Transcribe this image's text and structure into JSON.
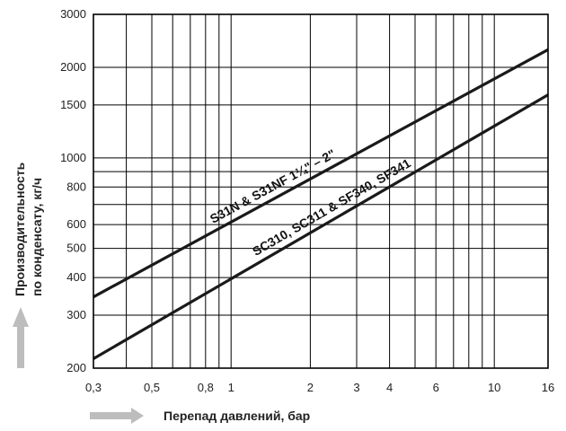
{
  "chart_data": {
    "type": "line",
    "x_scale": "log",
    "y_scale": "log",
    "xlim": [
      0.3,
      16
    ],
    "ylim": [
      200,
      3000
    ],
    "xlabel": "Перепад давлений, бар",
    "ylabel_line1": "Производительность",
    "ylabel_line2": "по конденсату, кг/ч",
    "x_ticks": [
      {
        "value": 0.3,
        "label": "0,3"
      },
      {
        "value": 0.5,
        "label": "0,5"
      },
      {
        "value": 0.8,
        "label": "0,8"
      },
      {
        "value": 1,
        "label": "1"
      },
      {
        "value": 2,
        "label": "2"
      },
      {
        "value": 3,
        "label": "3"
      },
      {
        "value": 4,
        "label": "4"
      },
      {
        "value": 6,
        "label": "6"
      },
      {
        "value": 10,
        "label": "10"
      },
      {
        "value": 16,
        "label": "16"
      }
    ],
    "x_grid": [
      0.4,
      0.5,
      0.6,
      0.7,
      0.8,
      0.9,
      1,
      2,
      3,
      4,
      5,
      6,
      7,
      8,
      9,
      10
    ],
    "y_ticks": [
      {
        "value": 200,
        "label": "200"
      },
      {
        "value": 300,
        "label": "300"
      },
      {
        "value": 400,
        "label": "400"
      },
      {
        "value": 500,
        "label": "500"
      },
      {
        "value": 600,
        "label": "600"
      },
      {
        "value": 800,
        "label": "800"
      },
      {
        "value": 1000,
        "label": "1000"
      },
      {
        "value": 1500,
        "label": "1500"
      },
      {
        "value": 2000,
        "label": "2000"
      },
      {
        "value": 3000,
        "label": "3000"
      }
    ],
    "y_grid": [
      300,
      400,
      500,
      600,
      700,
      800,
      900,
      1000,
      1500,
      2000
    ],
    "grid": true,
    "series": [
      {
        "name": "S31N & S31NF   1¼\" – 2\"",
        "x": [
          0.3,
          16
        ],
        "y": [
          345,
          2290
        ]
      },
      {
        "name": "SC310, SC311 & SF340, SF341",
        "x": [
          0.3,
          16
        ],
        "y": [
          215,
          1620
        ]
      }
    ],
    "colors": {
      "line": "#1a1a1a",
      "grid": "#000000",
      "arrow": "#bdbdbd"
    }
  }
}
